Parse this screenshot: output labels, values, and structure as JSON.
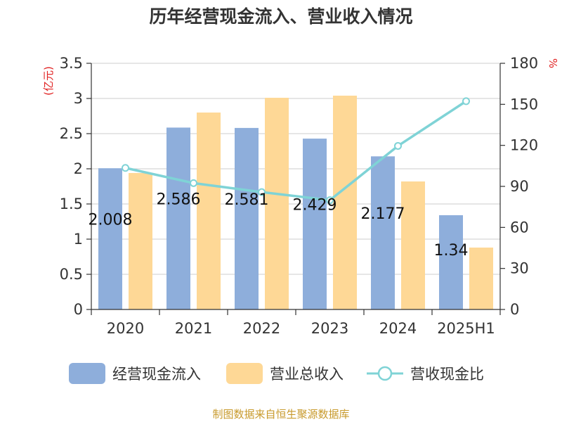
{
  "chart_data": {
    "type": "bar",
    "title": "历年经营现金流入、营业收入情况",
    "categories": [
      "2020",
      "2021",
      "2022",
      "2023",
      "2024",
      "2025H1"
    ],
    "series": [
      {
        "name": "经营现金流入",
        "type": "bar",
        "axis": "left",
        "color": "#8eaedb",
        "values": [
          2.008,
          2.586,
          2.581,
          2.429,
          2.177,
          1.34
        ]
      },
      {
        "name": "营业总收入",
        "type": "bar",
        "axis": "left",
        "color": "#fed896",
        "values": [
          1.94,
          2.8,
          3.01,
          3.04,
          1.82,
          0.88
        ]
      },
      {
        "name": "营收现金比",
        "type": "line",
        "axis": "right",
        "color": "#7fd3d6",
        "values": [
          103.5,
          92.4,
          85.8,
          79.9,
          119.6,
          152.3
        ]
      }
    ],
    "data_labels": [
      "2.008",
      "2.586",
      "2.581",
      "2.429",
      "2.177",
      "1.34"
    ],
    "y_left": {
      "label": "(亿元)",
      "min": 0,
      "max": 3.5,
      "ticks": [
        "0",
        "0.5",
        "1",
        "1.5",
        "2",
        "2.5",
        "3",
        "3.5"
      ]
    },
    "y_right": {
      "label": "%",
      "min": 0,
      "max": 180,
      "ticks": [
        "0",
        "30",
        "60",
        "90",
        "120",
        "150",
        "180"
      ]
    },
    "grid": true,
    "legend_position": "bottom"
  },
  "footer": {
    "credit": "制图数据来自恒生聚源数据库"
  },
  "colors": {
    "axis": "#333333",
    "grid": "#cccccc",
    "unit_label": "#e02020"
  }
}
